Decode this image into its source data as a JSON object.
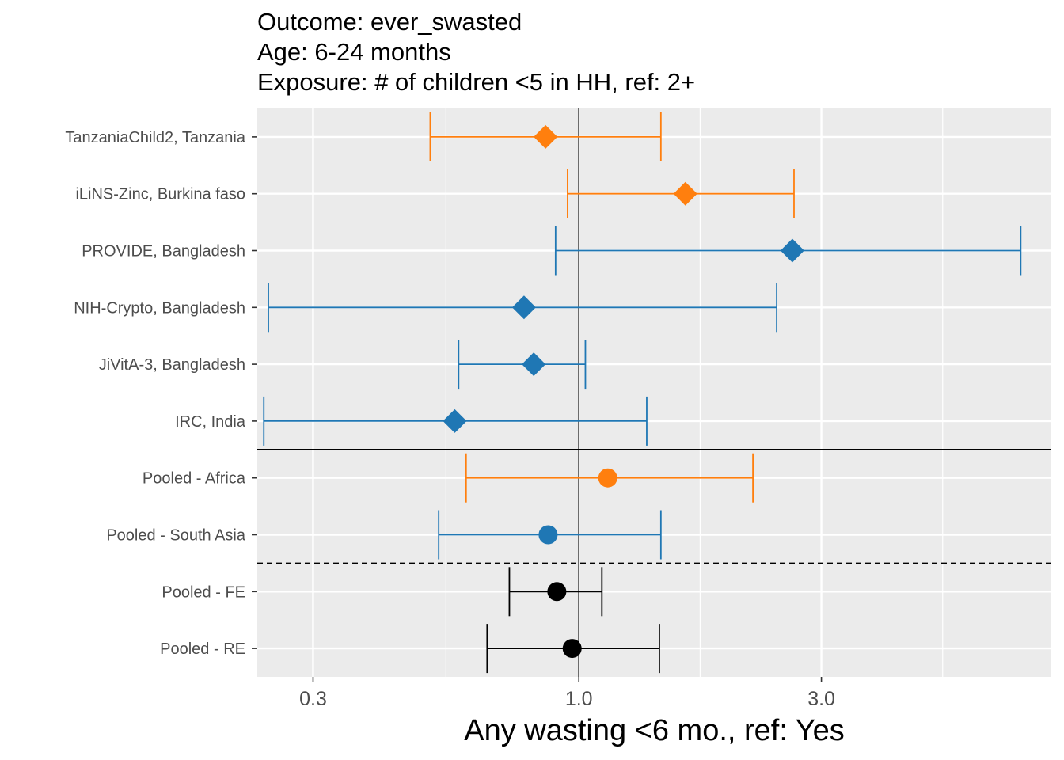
{
  "chart_data": {
    "type": "forest",
    "title_lines": [
      "Outcome: ever_swasted",
      "Age: 6-24 months",
      "Exposure: # of children <5 in HH, ref: 2+"
    ],
    "xlabel": "Any wasting  <6 mo., ref: Yes",
    "ylabel": "",
    "x_scale": "log",
    "xlim": [
      0.233,
      8.5
    ],
    "x_ticks": [
      0.3,
      1.0,
      3.0
    ],
    "x_tick_labels": [
      "0.3",
      "1.0",
      "3.0"
    ],
    "reference_line_x": 1.0,
    "grid": true,
    "legend": "none",
    "colors": {
      "africa": "#FF7F0E",
      "south_asia": "#1F77B4",
      "pooled": "#000000"
    },
    "rows": [
      {
        "label": "TanzaniaChild2, Tanzania",
        "est": 0.86,
        "lo": 0.51,
        "hi": 1.45,
        "region": "africa",
        "shape": "diamond"
      },
      {
        "label": "iLiNS-Zinc, Burkina faso",
        "est": 1.62,
        "lo": 0.95,
        "hi": 2.65,
        "region": "africa",
        "shape": "diamond"
      },
      {
        "label": "PROVIDE, Bangladesh",
        "est": 2.63,
        "lo": 0.9,
        "hi": 7.4,
        "region": "south_asia",
        "shape": "diamond"
      },
      {
        "label": "NIH-Crypto, Bangladesh",
        "est": 0.78,
        "lo": 0.245,
        "hi": 2.45,
        "region": "south_asia",
        "shape": "diamond"
      },
      {
        "label": "JiVitA-3, Bangladesh",
        "est": 0.815,
        "lo": 0.58,
        "hi": 1.03,
        "region": "south_asia",
        "shape": "diamond"
      },
      {
        "label": "IRC, India",
        "est": 0.57,
        "lo": 0.24,
        "hi": 1.36,
        "region": "south_asia",
        "shape": "diamond"
      },
      {
        "label": "Pooled - Africa",
        "est": 1.14,
        "lo": 0.6,
        "hi": 2.2,
        "region": "africa",
        "shape": "circle"
      },
      {
        "label": "Pooled - South Asia",
        "est": 0.87,
        "lo": 0.53,
        "hi": 1.45,
        "region": "south_asia",
        "shape": "circle"
      },
      {
        "label": "Pooled - FE",
        "est": 0.905,
        "lo": 0.73,
        "hi": 1.11,
        "region": "pooled",
        "shape": "circle"
      },
      {
        "label": "Pooled - RE",
        "est": 0.97,
        "lo": 0.66,
        "hi": 1.44,
        "region": "pooled",
        "shape": "circle"
      }
    ],
    "separators": [
      {
        "after_row": 5,
        "style": "solid"
      },
      {
        "after_row": 7,
        "style": "dashed"
      }
    ]
  }
}
